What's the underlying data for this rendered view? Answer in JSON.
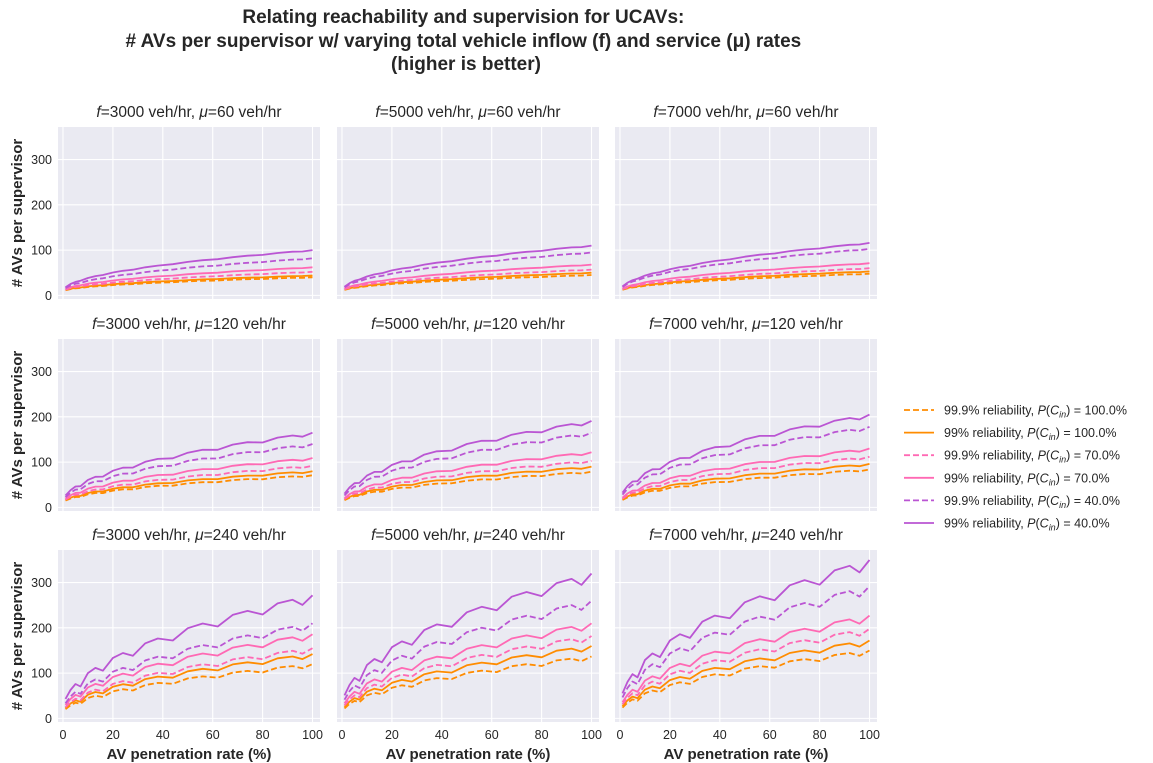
{
  "figure": {
    "title_lines": [
      "Relating reachability and supervision for UCAVs:",
      "# AVs per supervisor w/ varying total vehicle inflow (f) and service (μ) rates",
      "(higher is better)"
    ],
    "background": "#eaeaf2",
    "grid_color": "#ffffff"
  },
  "chart_data": {
    "type": "line",
    "xlabel": "AV penetration rate (%)",
    "ylabel": "# AVs per supervisor",
    "xlim": [
      -2,
      103
    ],
    "ylim": [
      -8,
      372
    ],
    "xticks": [
      0,
      20,
      40,
      60,
      80,
      100
    ],
    "yticks": [
      0,
      100,
      200,
      300
    ],
    "grid": true,
    "legend_placement": "center-right",
    "series_styles": [
      {
        "name": "99.9% reliability, P(C_in) = 100.0%",
        "label": "99.9% reliability, ",
        "pin": "100.0%",
        "color": "#ff8c00",
        "dash": true
      },
      {
        "name": "99% reliability, P(C_in) = 100.0%",
        "label": "99% reliability, ",
        "pin": "100.0%",
        "color": "#ff8c00",
        "dash": false
      },
      {
        "name": "99.9% reliability, P(C_in) = 70.0%",
        "label": "99.9% reliability, ",
        "pin": "70.0%",
        "color": "#ff69b4",
        "dash": true
      },
      {
        "name": "99% reliability, P(C_in) = 70.0%",
        "label": "99% reliability, ",
        "pin": "70.0%",
        "color": "#ff69b4",
        "dash": false
      },
      {
        "name": "99.9% reliability, P(C_in) = 40.0%",
        "label": "99.9% reliability, ",
        "pin": "40.0%",
        "color": "#ba55d3",
        "dash": true
      },
      {
        "name": "99% reliability, P(C_in) = 40.0%",
        "label": "99% reliability, ",
        "pin": "40.0%",
        "color": "#ba55d3",
        "dash": false
      }
    ],
    "panels": [
      {
        "f": "3000",
        "mu": "60",
        "row": 0,
        "col": 0,
        "end_values": [
          40,
          44,
          52,
          62,
          82,
          100
        ]
      },
      {
        "f": "5000",
        "mu": "60",
        "row": 0,
        "col": 1,
        "end_values": [
          45,
          50,
          57,
          68,
          95,
          110
        ]
      },
      {
        "f": "7000",
        "mu": "60",
        "row": 0,
        "col": 2,
        "end_values": [
          48,
          53,
          60,
          71,
          103,
          116
        ]
      },
      {
        "f": "3000",
        "mu": "120",
        "row": 1,
        "col": 0,
        "end_values": [
          71,
          80,
          92,
          109,
          140,
          165
        ]
      },
      {
        "f": "5000",
        "mu": "120",
        "row": 1,
        "col": 1,
        "end_values": [
          79,
          90,
          103,
          122,
          165,
          191
        ]
      },
      {
        "f": "7000",
        "mu": "120",
        "row": 1,
        "col": 2,
        "end_values": [
          84,
          96,
          112,
          130,
          178,
          205
        ]
      },
      {
        "f": "3000",
        "mu": "240",
        "row": 2,
        "col": 0,
        "end_values": [
          120,
          142,
          155,
          186,
          210,
          272
        ]
      },
      {
        "f": "5000",
        "mu": "240",
        "row": 2,
        "col": 1,
        "end_values": [
          137,
          160,
          182,
          210,
          260,
          320
        ]
      },
      {
        "f": "7000",
        "mu": "240",
        "row": 2,
        "col": 2,
        "end_values": [
          150,
          172,
          198,
          227,
          292,
          350
        ]
      }
    ],
    "x_values": [
      1,
      3,
      5,
      7,
      10,
      13,
      16,
      20,
      24,
      28,
      33,
      38,
      44,
      50,
      56,
      62,
      68,
      74,
      80,
      86,
      92,
      96,
      100
    ]
  }
}
